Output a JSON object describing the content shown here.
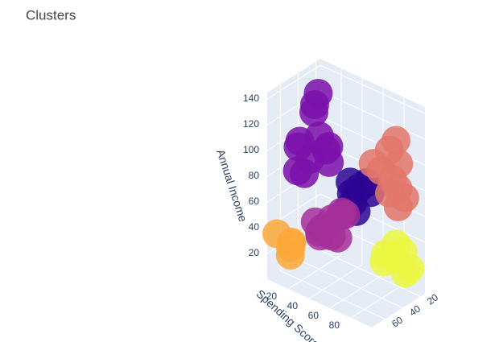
{
  "chart_data": {
    "type": "scatter3d",
    "title": "Clusters",
    "xlim": [
      15,
      75
    ],
    "xticks": [
      20,
      40,
      60
    ],
    "ylabel": "Spending Score",
    "ylim": [
      0,
      100
    ],
    "yticks": [
      20,
      40,
      60,
      80
    ],
    "zlabel": "Annual Income",
    "zlim": [
      0,
      145
    ],
    "zticks": [
      20,
      40,
      60,
      80,
      100,
      120,
      140
    ],
    "grid": true,
    "series": [
      {
        "color": "#7a0fa9",
        "x": [
          40,
          45,
          50,
          35,
          48,
          42,
          55,
          38,
          46,
          52,
          44,
          41
        ],
        "y": [
          15,
          20,
          10,
          25,
          18,
          22,
          12,
          28,
          5,
          16,
          30,
          20
        ],
        "z": [
          120,
          130,
          100,
          95,
          88,
          105,
          80,
          85,
          92,
          78,
          98,
          137
        ]
      },
      {
        "color": "#2b0593",
        "x": [
          30,
          33,
          28,
          35,
          31,
          27,
          36,
          32
        ],
        "y": [
          50,
          45,
          55,
          48,
          42,
          58,
          52,
          40
        ],
        "z": [
          70,
          65,
          75,
          60,
          72,
          68,
          55,
          50
        ]
      },
      {
        "color": "#e3756a",
        "x": [
          30,
          33,
          35,
          28,
          32,
          38,
          31,
          29,
          34,
          36
        ],
        "y": [
          85,
          90,
          75,
          80,
          95,
          70,
          88,
          78,
          82,
          92
        ],
        "z": [
          120,
          105,
          95,
          87,
          80,
          100,
          70,
          76,
          113,
          88
        ]
      },
      {
        "color": "#a52f98",
        "x": [
          55,
          60,
          50,
          65,
          58,
          52,
          62,
          48,
          57,
          68
        ],
        "y": [
          45,
          40,
          50,
          42,
          55,
          48,
          35,
          52,
          46,
          44
        ],
        "z": [
          55,
          48,
          60,
          45,
          62,
          40,
          52,
          58,
          43,
          50
        ]
      },
      {
        "color": "#fca83a",
        "x": [
          60,
          65,
          58,
          70,
          63
        ],
        "y": [
          10,
          15,
          8,
          5,
          12
        ],
        "z": [
          25,
          30,
          20,
          35,
          18
        ]
      },
      {
        "color": "#ecf741",
        "x": [
          25,
          22,
          28,
          20,
          24,
          30,
          23
        ],
        "y": [
          78,
          85,
          72,
          90,
          80,
          75,
          88
        ],
        "z": [
          25,
          30,
          20,
          18,
          35,
          28,
          15
        ]
      }
    ]
  }
}
